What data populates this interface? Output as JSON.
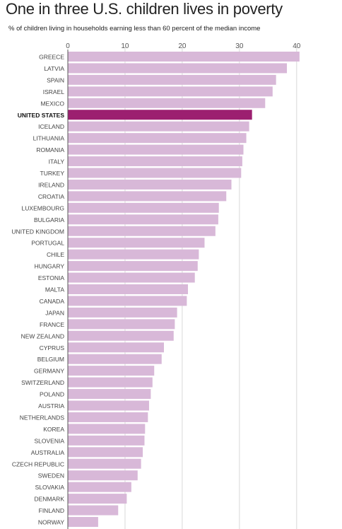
{
  "title": "One in three U.S. children lives in poverty",
  "subtitle": "% of children living in households earning less than 60 percent of the median income",
  "colors": {
    "bar": "#d8b8d8",
    "highlight": "#9c1f70",
    "grid": "#d9d9d9",
    "axis": "#555555"
  },
  "chart_data": {
    "type": "bar",
    "orientation": "horizontal",
    "title": "One in three U.S. children lives in poverty",
    "subtitle": "% of children living in households earning less than 60 percent of the median income",
    "xlim": [
      0,
      42
    ],
    "ticks": [
      0,
      10,
      20,
      30,
      40
    ],
    "highlight": "UNITED STATES",
    "categories": [
      "GREECE",
      "LATVIA",
      "SPAIN",
      "ISRAEL",
      "MEXICO",
      "UNITED STATES",
      "ICELAND",
      "LITHUANIA",
      "ROMANIA",
      "ITALY",
      "TURKEY",
      "IRELAND",
      "CROATIA",
      "LUXEMBOURG",
      "BULGARIA",
      "UNITED KINGDOM",
      "PORTUGAL",
      "CHILE",
      "HUNGARY",
      "ESTONIA",
      "MALTA",
      "CANADA",
      "JAPAN",
      "FRANCE",
      "NEW ZEALAND",
      "CYPRUS",
      "BELGIUM",
      "GERMANY",
      "SWITZERLAND",
      "POLAND",
      "AUSTRIA",
      "NETHERLANDS",
      "KOREA",
      "SLOVENIA",
      "AUSTRALIA",
      "CZECH REPUBLIC",
      "SWEDEN",
      "SLOVAKIA",
      "DENMARK",
      "FINLAND",
      "NORWAY"
    ],
    "values": [
      40.5,
      38.3,
      36.4,
      35.8,
      34.5,
      32.2,
      31.7,
      31.2,
      30.7,
      30.5,
      30.3,
      28.6,
      27.7,
      26.4,
      26.3,
      25.8,
      23.9,
      22.9,
      22.7,
      22.2,
      21.0,
      20.8,
      19.1,
      18.7,
      18.5,
      16.8,
      16.4,
      15.1,
      14.8,
      14.5,
      14.2,
      14.0,
      13.5,
      13.4,
      13.1,
      12.8,
      12.2,
      11.1,
      10.3,
      8.8,
      5.3
    ]
  }
}
